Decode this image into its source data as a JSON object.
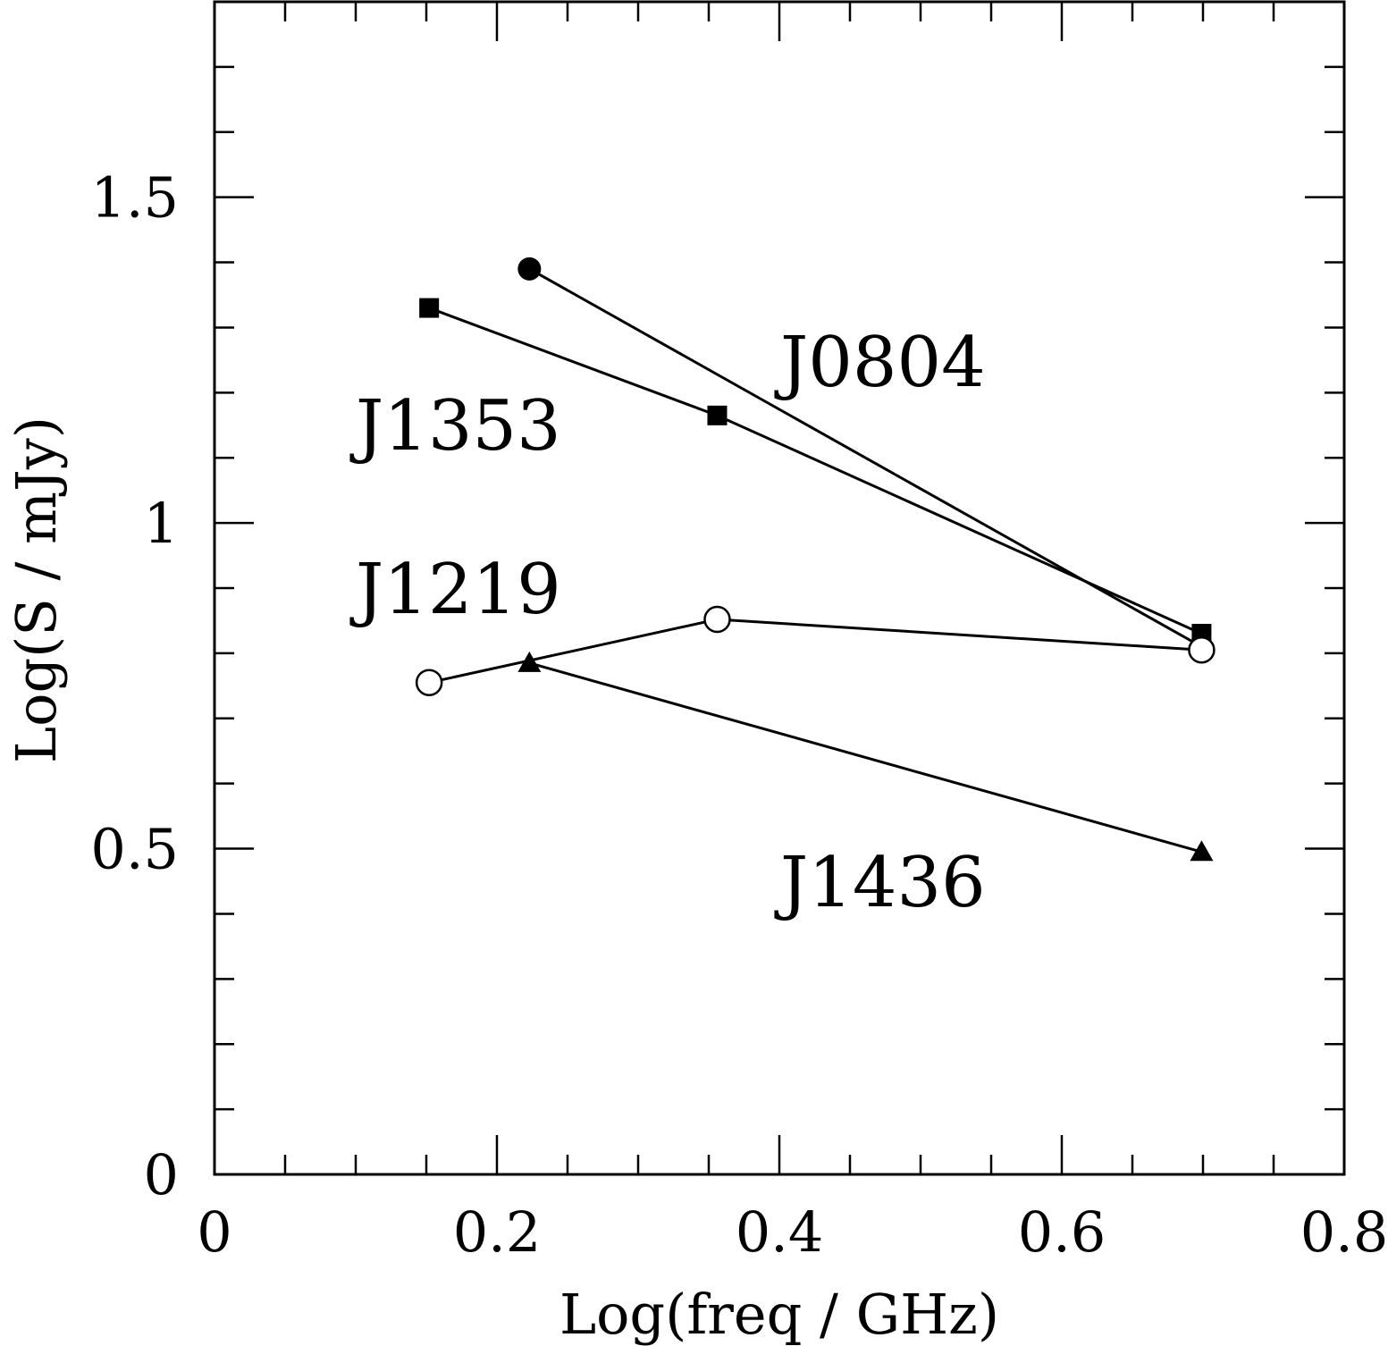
{
  "chart_data": {
    "type": "line",
    "xlabel": "Log(freq / GHz)",
    "ylabel": "Log(S / mJy)",
    "xlim": [
      0,
      0.8
    ],
    "ylim": [
      0,
      1.8
    ],
    "x_ticks": [
      "0",
      "0.2",
      "0.4",
      "0.6",
      "0.8"
    ],
    "y_ticks": [
      "0",
      "0.5",
      "1",
      "1.5"
    ],
    "grid": false,
    "series": [
      {
        "name": "J0804",
        "marker": "filled-circle",
        "x": [
          0.223,
          0.699
        ],
        "y": [
          1.39,
          0.81
        ]
      },
      {
        "name": "J1353",
        "marker": "filled-square",
        "x": [
          0.152,
          0.356,
          0.699
        ],
        "y": [
          1.33,
          1.165,
          0.83
        ]
      },
      {
        "name": "J1219",
        "marker": "open-circle",
        "x": [
          0.152,
          0.356,
          0.699
        ],
        "y": [
          0.755,
          0.852,
          0.805
        ]
      },
      {
        "name": "J1436",
        "marker": "filled-triangle",
        "x": [
          0.223,
          0.699
        ],
        "y": [
          0.785,
          0.495
        ]
      }
    ]
  }
}
